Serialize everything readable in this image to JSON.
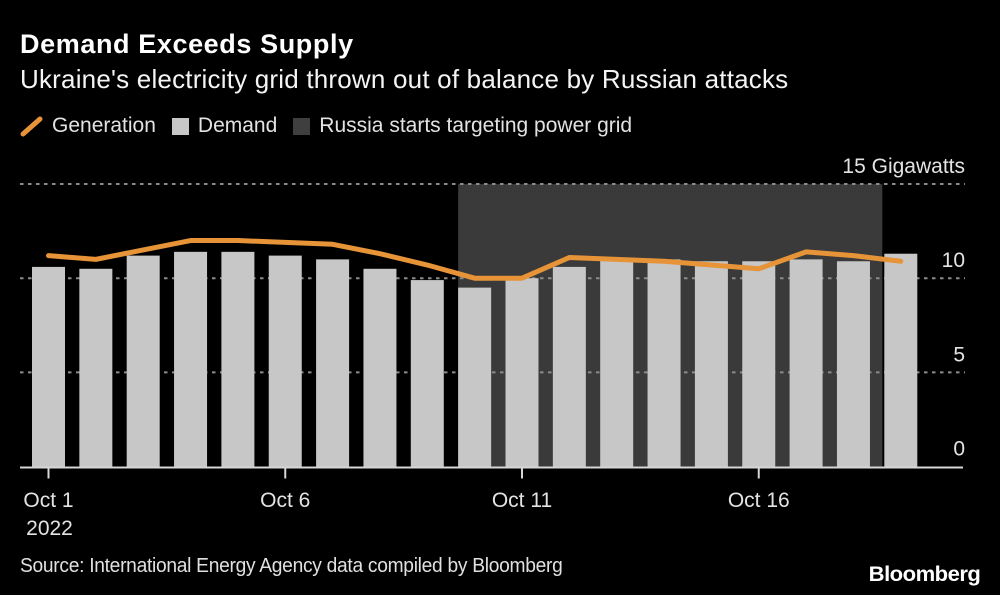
{
  "header": {
    "title": "Demand Exceeds Supply",
    "subtitle": "Ukraine's electricity grid thrown out of balance by Russian attacks"
  },
  "legend": [
    {
      "label": "Generation",
      "swatch": "slash",
      "color": "#E79338"
    },
    {
      "label": "Demand",
      "swatch": "square",
      "color": "#C7C7C7"
    },
    {
      "label": "Russia starts targeting power grid",
      "swatch": "square",
      "color": "#3F3F3F"
    }
  ],
  "chart_data": {
    "type": "bar",
    "title": "Demand Exceeds Supply",
    "subtitle": "Ukraine's electricity grid thrown out of balance by Russian attacks",
    "unit": "Gigawatts",
    "year": "2022",
    "grid": "dotted horizontal gridlines",
    "legend_position": "top",
    "categories": [
      "Oct 1",
      "Oct 2",
      "Oct 3",
      "Oct 4",
      "Oct 5",
      "Oct 6",
      "Oct 7",
      "Oct 8",
      "Oct 9",
      "Oct 10",
      "Oct 11",
      "Oct 12",
      "Oct 13",
      "Oct 14",
      "Oct 15",
      "Oct 16",
      "Oct 17",
      "Oct 18",
      "Oct 19"
    ],
    "series": [
      {
        "name": "Demand",
        "type": "bar",
        "color": "#C7C7C7",
        "values": [
          10.6,
          10.5,
          11.2,
          11.4,
          11.4,
          11.2,
          11.0,
          10.5,
          9.9,
          9.5,
          10.0,
          10.6,
          11.0,
          11.0,
          10.9,
          10.9,
          11.0,
          10.9,
          11.3
        ]
      },
      {
        "name": "Generation",
        "type": "line",
        "color": "#E79338",
        "values": [
          11.2,
          11.0,
          11.5,
          12.0,
          12.0,
          11.9,
          11.8,
          11.3,
          10.7,
          10.0,
          10.0,
          11.1,
          11.0,
          10.9,
          10.7,
          10.5,
          11.4,
          11.2,
          10.9
        ]
      }
    ],
    "annotation_region": {
      "label": "Russia starts targeting power grid",
      "from": "Oct 10",
      "to": "Oct 18",
      "color": "#3A3A3A"
    },
    "y_axis": {
      "range": [
        0,
        15
      ],
      "ticks": [
        {
          "value": 15,
          "label": "15 Gigawatts"
        },
        {
          "value": 10,
          "label": "10"
        },
        {
          "value": 5,
          "label": "5"
        },
        {
          "value": 0,
          "label": "0"
        }
      ]
    },
    "x_axis": {
      "ticks": [
        {
          "category": "Oct 1",
          "label": "Oct 1",
          "sublabel": "2022"
        },
        {
          "category": "Oct 6",
          "label": "Oct 6"
        },
        {
          "category": "Oct 11",
          "label": "Oct 11"
        },
        {
          "category": "Oct 16",
          "label": "Oct 16"
        }
      ]
    }
  },
  "colors": {
    "background": "#000000",
    "bar": "#C7C7C7",
    "line": "#E79338",
    "region": "#3A3A3A",
    "grid": "#8C8C8C",
    "axis": "#D6D6D6",
    "tick_text": "#E3E3E3",
    "title_text": "#FFFFFF"
  },
  "footer": {
    "source": "Source: International Energy Agency data compiled by Bloomberg",
    "logo": "Bloomberg"
  }
}
